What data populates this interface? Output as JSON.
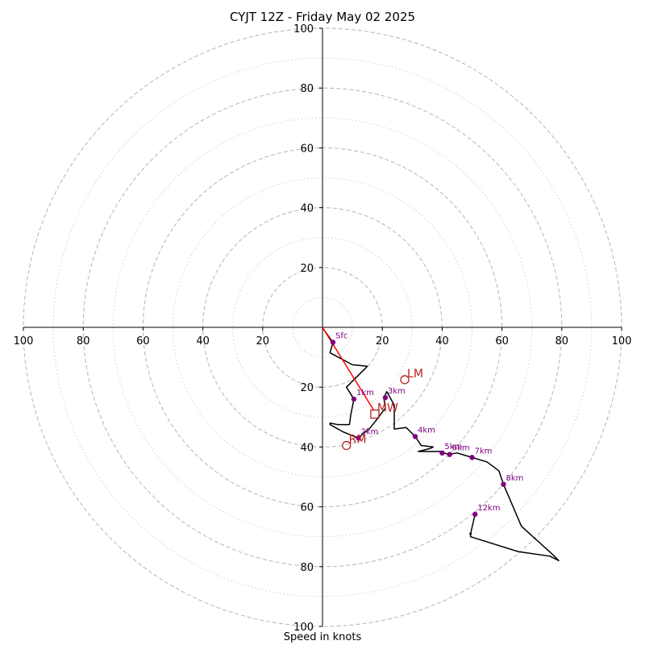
{
  "chart_data": {
    "type": "hodograph",
    "title": "CYJT 12Z - Friday May 02 2025",
    "xlabel": "Speed in knots",
    "units": "knots",
    "rings_major": [
      20,
      40,
      60,
      80,
      100
    ],
    "rings_minor": [
      10,
      30,
      50,
      70,
      90
    ],
    "axis_ticks": [
      "20",
      "40",
      "60",
      "80",
      "100"
    ],
    "axis_ranges": {
      "u": [
        -100,
        100
      ],
      "v": [
        -100,
        100
      ]
    },
    "grid": true,
    "colors": {
      "hodograph": "#000000",
      "height_markers": "#800080",
      "motion_markers": "#b22222",
      "bulk_shear": "#ff0000",
      "rings": "#bbbbbb"
    },
    "hodograph_trace": [
      [
        0.0,
        -0.2
      ],
      [
        3.5,
        -5
      ],
      [
        2.5,
        -8.5
      ],
      [
        10,
        -12.5
      ],
      [
        15,
        -13
      ],
      [
        10.5,
        -17.5
      ],
      [
        8,
        -20
      ],
      [
        10.5,
        -24
      ],
      [
        9.5,
        -29
      ],
      [
        9,
        -32.5
      ],
      [
        5,
        -32.5
      ],
      [
        2.5,
        -32
      ],
      [
        2.5,
        -32.5
      ],
      [
        7,
        -35
      ],
      [
        12,
        -37
      ],
      [
        16,
        -33.5
      ],
      [
        18,
        -31
      ],
      [
        21,
        -27
      ],
      [
        20.5,
        -23.5
      ],
      [
        21.5,
        -21.5
      ],
      [
        24,
        -26
      ],
      [
        24,
        -34
      ],
      [
        28,
        -33.5
      ],
      [
        31,
        -36.5
      ],
      [
        33,
        -39.5
      ],
      [
        37,
        -40
      ],
      [
        36,
        -40.5
      ],
      [
        32,
        -41.5
      ],
      [
        39.5,
        -41.5
      ],
      [
        42,
        -42.5
      ],
      [
        45,
        -42
      ],
      [
        50,
        -43.5
      ],
      [
        55,
        -45
      ],
      [
        59,
        -48
      ],
      [
        60.5,
        -52.5
      ],
      [
        66.5,
        -66.5
      ],
      [
        77,
        -76
      ],
      [
        79,
        -78
      ],
      [
        76,
        -76.5
      ],
      [
        65.5,
        -75
      ],
      [
        49.5,
        -70
      ],
      [
        49.5,
        -69
      ],
      [
        51,
        -62.5
      ]
    ],
    "height_markers": [
      {
        "label": "Sfc",
        "u": 3.5,
        "v": -5
      },
      {
        "label": "1km",
        "u": 10.5,
        "v": -24
      },
      {
        "label": "2km",
        "u": 12,
        "v": -37
      },
      {
        "label": "3km",
        "u": 21,
        "v": -23.5
      },
      {
        "label": "4km",
        "u": 31,
        "v": -36.5
      },
      {
        "label": "5km",
        "u": 40,
        "v": -42
      },
      {
        "label": "6km",
        "u": 42.5,
        "v": -42.5
      },
      {
        "label": "7km",
        "u": 50,
        "v": -43.5
      },
      {
        "label": "8km",
        "u": 60.5,
        "v": -52.5
      },
      {
        "label": "12km",
        "u": 51,
        "v": -62.5
      }
    ],
    "storm_motion": [
      {
        "label": "LM",
        "u": 27.5,
        "v": -17.5,
        "marker": "circle"
      },
      {
        "label": "MW",
        "u": 17.5,
        "v": -29,
        "marker": "square"
      },
      {
        "label": "RM",
        "u": 8,
        "v": -39.5,
        "marker": "circle"
      }
    ],
    "bulk_shear": {
      "from": [
        0,
        0
      ],
      "to": [
        17,
        -27.5
      ]
    }
  }
}
